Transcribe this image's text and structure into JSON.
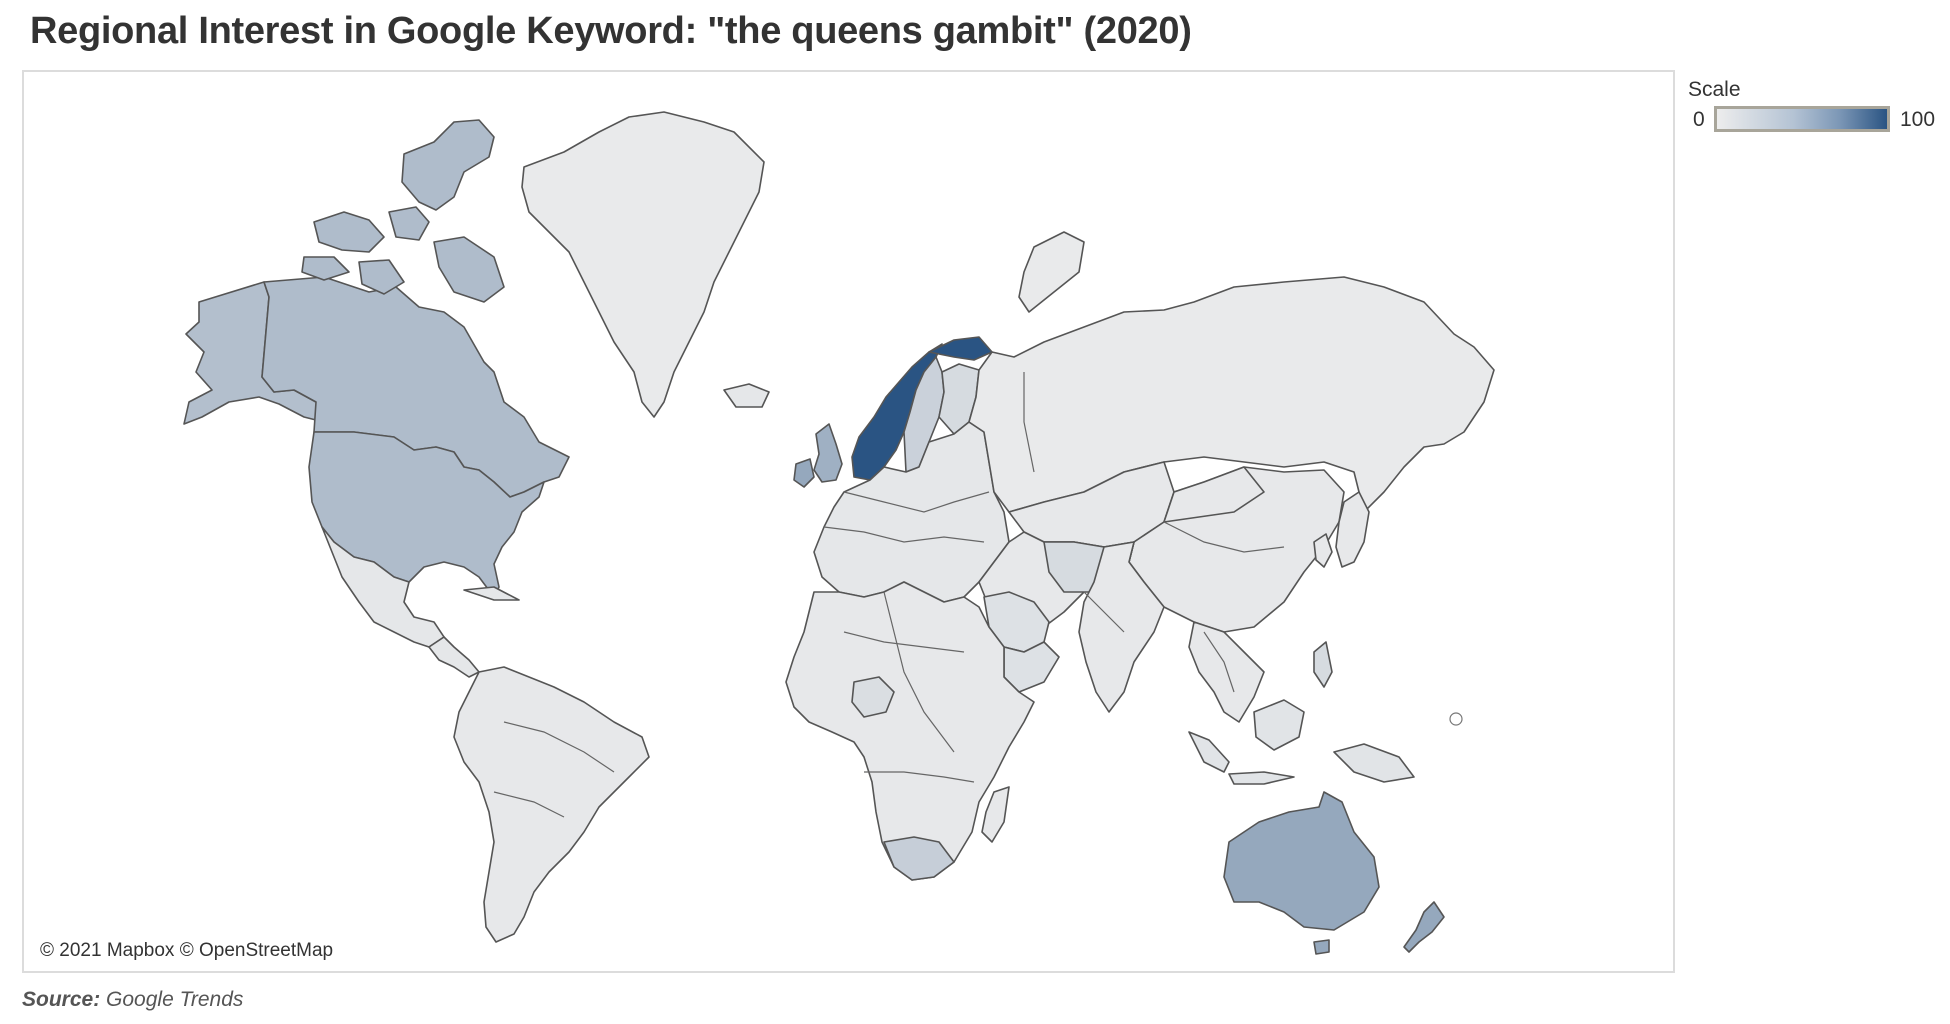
{
  "title": "Regional Interest in Google Keyword: \"the queens gambit\" (2020)",
  "legend": {
    "title": "Scale",
    "min_label": "0",
    "max_label": "100",
    "color_low": "#ededed",
    "color_high": "#2a5483"
  },
  "attribution": "© 2021 Mapbox © OpenStreetMap",
  "source": {
    "label": "Source:",
    "text": "Google Trends"
  },
  "colors": {
    "background": "#ffffff",
    "no_data": "#ececec",
    "border": "#555555"
  },
  "map_data": {
    "type": "choropleth",
    "projection": "web-mercator",
    "scale_range": [
      0,
      100
    ],
    "levels": [
      {
        "region": "canada",
        "name": "Canada",
        "shade": 0.32
      },
      {
        "region": "usa",
        "name": "United States",
        "shade": 0.32
      },
      {
        "region": "alaska",
        "name": "Alaska",
        "shade": 0.3
      },
      {
        "region": "greenland",
        "name": "Greenland",
        "shade": 0.02
      },
      {
        "region": "norway",
        "name": "Norway",
        "shade": 1.0
      },
      {
        "region": "sweden",
        "name": "Sweden",
        "shade": 0.18
      },
      {
        "region": "finland",
        "name": "Finland",
        "shade": 0.12
      },
      {
        "region": "uk",
        "name": "United Kingdom",
        "shade": 0.4
      },
      {
        "region": "ireland",
        "name": "Ireland",
        "shade": 0.45
      },
      {
        "region": "australia",
        "name": "Australia",
        "shade": 0.45
      },
      {
        "region": "newzealand",
        "name": "New Zealand",
        "shade": 0.45
      },
      {
        "region": "southafrica",
        "name": "South Africa",
        "shade": 0.2
      },
      {
        "region": "mexico",
        "name": "Mexico",
        "shade": 0.04
      },
      {
        "region": "southamerica",
        "name": "South America",
        "shade": 0.03
      },
      {
        "region": "europe",
        "name": "Europe",
        "shade": 0.04
      },
      {
        "region": "russia",
        "name": "Russia",
        "shade": 0.02
      },
      {
        "region": "asia",
        "name": "Asia",
        "shade": 0.03
      },
      {
        "region": "china",
        "name": "China",
        "shade": 0.03
      },
      {
        "region": "india",
        "name": "India",
        "shade": 0.03
      },
      {
        "region": "africa",
        "name": "Africa",
        "shade": 0.03
      },
      {
        "region": "nigeria",
        "name": "Nigeria",
        "shade": 0.1
      },
      {
        "region": "iran",
        "name": "Iran",
        "shade": 0.12
      },
      {
        "region": "saudi",
        "name": "Saudi Arabia",
        "shade": 0.08
      },
      {
        "region": "indonesia",
        "name": "Indonesia",
        "shade": 0.06
      },
      {
        "region": "philippines",
        "name": "Philippines",
        "shade": 0.12
      },
      {
        "region": "japan",
        "name": "Japan",
        "shade": 0.03
      }
    ]
  }
}
